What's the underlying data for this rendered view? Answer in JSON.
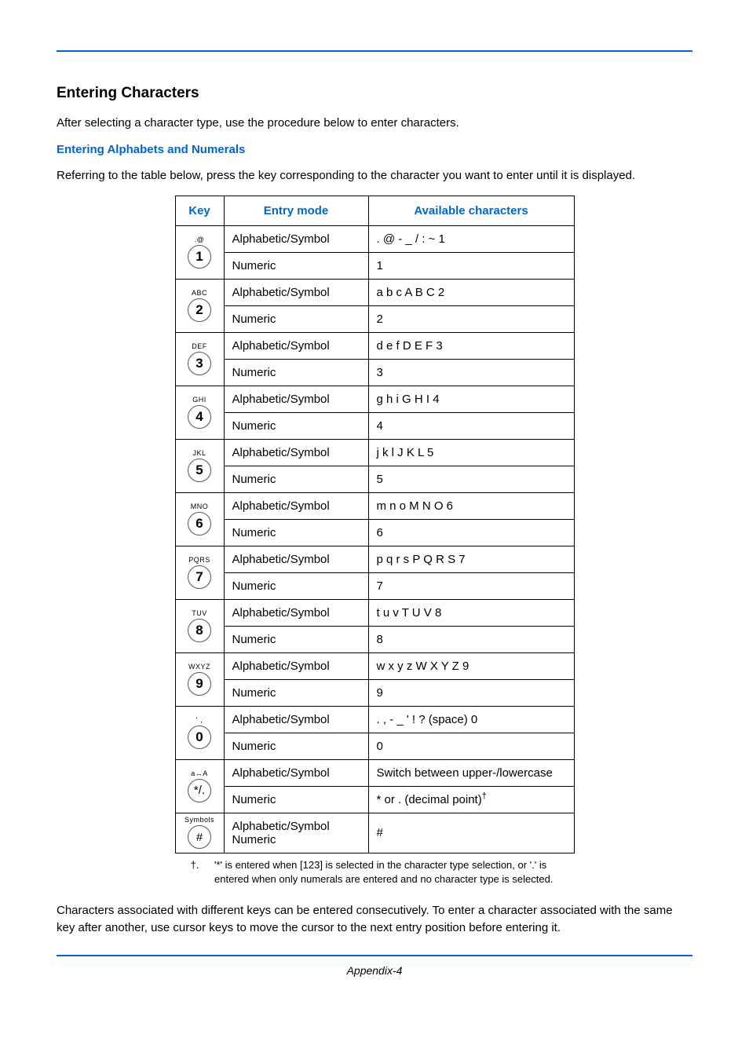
{
  "colors": {
    "accent": "#0066cc",
    "text": "#000000",
    "border": "#000000",
    "keyBorder": "#555555"
  },
  "title": "Entering Characters",
  "intro": "After selecting a character type, use the procedure below to enter characters.",
  "subtitle": "Entering Alphabets and Numerals",
  "lead": "Referring to the table below, press the key corresponding to the character you want to enter until it is displayed.",
  "columns": [
    "Key",
    "Entry mode",
    "Available characters"
  ],
  "entryModes": {
    "alpha": "Alphabetic/Symbol",
    "numeric": "Numeric",
    "both": "Alphabetic/Symbol\nNumeric"
  },
  "keys": [
    {
      "label": " .@",
      "digit": "1",
      "alpha": ". @ - _ / : ~ 1",
      "numeric": "1"
    },
    {
      "label": "ABC",
      "digit": "2",
      "alpha": "a b c A B C 2",
      "numeric": "2"
    },
    {
      "label": "DEF",
      "digit": "3",
      "alpha": "d e f D E F 3",
      "numeric": "3"
    },
    {
      "label": "GHI",
      "digit": "4",
      "alpha": "g h i G H I 4",
      "numeric": "4"
    },
    {
      "label": "JKL",
      "digit": "5",
      "alpha": "j k l J K L 5",
      "numeric": "5"
    },
    {
      "label": "MNO",
      "digit": "6",
      "alpha": "m n o M N O 6",
      "numeric": "6"
    },
    {
      "label": "PQRS",
      "digit": "7",
      "alpha": "p q r s P Q R S 7",
      "numeric": "7"
    },
    {
      "label": "TUV",
      "digit": "8",
      "alpha": "t u v T U V 8",
      "numeric": "8"
    },
    {
      "label": "WXYZ",
      "digit": "9",
      "alpha": "w x y z W X Y Z 9",
      "numeric": "9"
    },
    {
      "label": "' ,",
      "digit": "0",
      "alpha": ". , - _ ' ! ? (space) 0",
      "numeric": "0"
    },
    {
      "label": "a↔A",
      "digit": "*/.",
      "digitClass": "sym",
      "alpha": "Switch between upper-/lowercase",
      "numeric": "* or . (decimal point)",
      "numericDagger": true
    },
    {
      "label": "Symbols",
      "digit": "#",
      "digitClass": "sym",
      "bothModes": true,
      "alpha": "#"
    }
  ],
  "footnote": {
    "mark": "†.",
    "text": "'*' is entered when [123] is selected in the character type selection, or '.' is entered when only numerals are entered and no character type is selected."
  },
  "trailing": "Characters associated with different keys can be entered consecutively. To enter a character associated with the same key after another, use cursor keys to move the cursor to the next entry position before entering it.",
  "footer": "Appendix-4"
}
